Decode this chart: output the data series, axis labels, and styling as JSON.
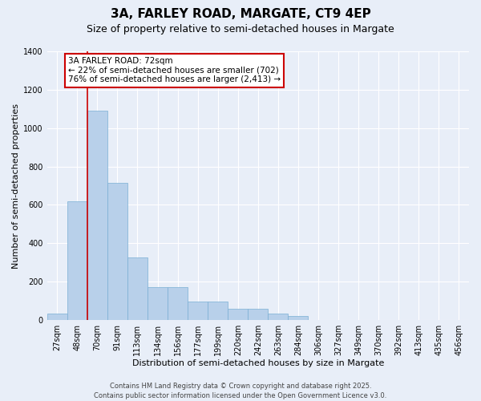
{
  "title": "3A, FARLEY ROAD, MARGATE, CT9 4EP",
  "subtitle": "Size of property relative to semi-detached houses in Margate",
  "xlabel": "Distribution of semi-detached houses by size in Margate",
  "ylabel": "Number of semi-detached properties",
  "categories": [
    "27sqm",
    "48sqm",
    "70sqm",
    "91sqm",
    "113sqm",
    "134sqm",
    "156sqm",
    "177sqm",
    "199sqm",
    "220sqm",
    "242sqm",
    "263sqm",
    "284sqm",
    "306sqm",
    "327sqm",
    "349sqm",
    "370sqm",
    "392sqm",
    "413sqm",
    "435sqm",
    "456sqm"
  ],
  "values": [
    35,
    620,
    1090,
    715,
    325,
    170,
    170,
    95,
    95,
    60,
    60,
    35,
    20,
    0,
    0,
    0,
    0,
    0,
    0,
    0,
    0
  ],
  "bar_color": "#b8d0ea",
  "bar_edge_color": "#7aafd4",
  "background_color": "#e8eef8",
  "grid_color": "#ffffff",
  "annotation_text": "3A FARLEY ROAD: 72sqm\n← 22% of semi-detached houses are smaller (702)\n76% of semi-detached houses are larger (2,413) →",
  "annotation_box_facecolor": "#ffffff",
  "annotation_box_edgecolor": "#cc0000",
  "redline_x": 1.5,
  "ylim": [
    0,
    1400
  ],
  "yticks": [
    0,
    200,
    400,
    600,
    800,
    1000,
    1200,
    1400
  ],
  "footer": "Contains HM Land Registry data © Crown copyright and database right 2025.\nContains public sector information licensed under the Open Government Licence v3.0.",
  "title_fontsize": 11,
  "subtitle_fontsize": 9,
  "xlabel_fontsize": 8,
  "ylabel_fontsize": 8,
  "tick_fontsize": 7,
  "annotation_fontsize": 7.5,
  "footer_fontsize": 6
}
